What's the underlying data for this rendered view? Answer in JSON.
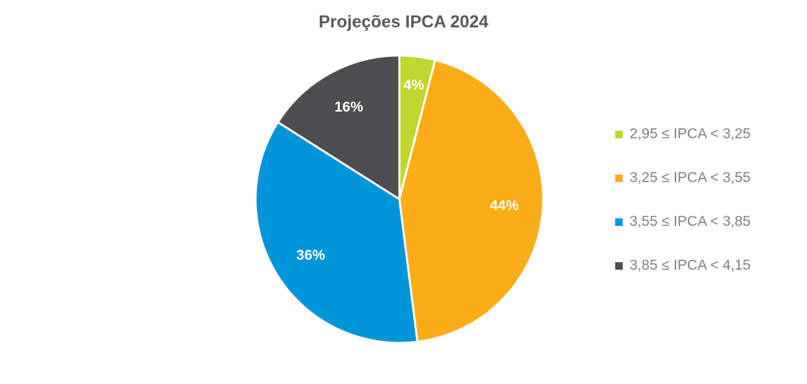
{
  "chart_data": {
    "type": "pie",
    "title": "Projeções IPCA 2024",
    "start_angle_deg": 0,
    "direction": "clockwise",
    "legend_position": "right",
    "slices": [
      {
        "label": "2,95 ≤ IPCA < 3,25",
        "value": 4,
        "display": "4%",
        "color": "#C0D72F",
        "label_color": "#ffffff"
      },
      {
        "label": "3,25 ≤ IPCA < 3,55",
        "value": 44,
        "display": "44%",
        "color": "#FBAD18",
        "label_color": "#ffffff"
      },
      {
        "label": "3,55 ≤ IPCA < 3,85",
        "value": 36,
        "display": "36%",
        "color": "#0095D9",
        "label_color": "#ffffff"
      },
      {
        "label": "3,85 ≤ IPCA < 4,15",
        "value": 16,
        "display": "16%",
        "color": "#4D4D4F",
        "label_color": "#ffffff"
      }
    ]
  }
}
